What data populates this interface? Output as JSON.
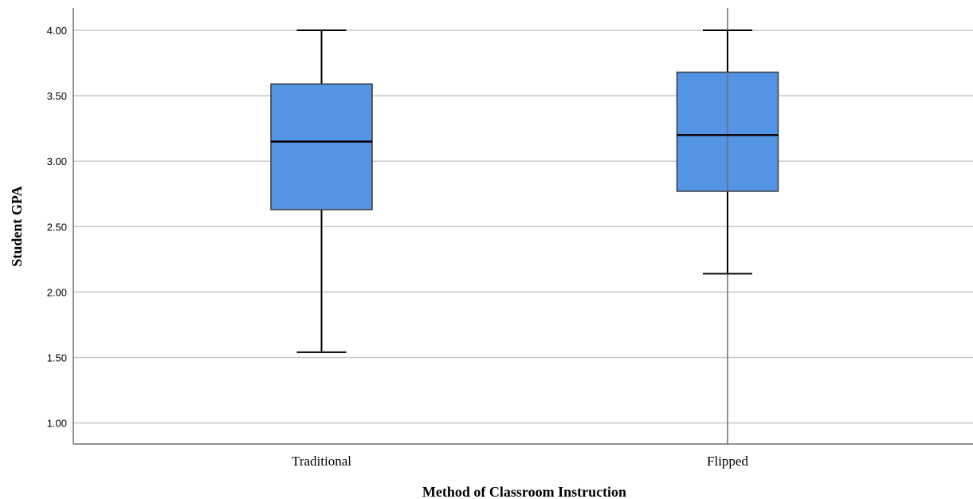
{
  "chart_data": {
    "type": "boxplot",
    "xlabel": "Method of Classroom Instruction",
    "ylabel": "Student GPA",
    "ylim": [
      0.85,
      4.17
    ],
    "yticks": [
      1.0,
      1.5,
      2.0,
      2.5,
      3.0,
      3.5,
      4.0
    ],
    "ytick_labels": [
      "1.00",
      "1.50",
      "2.00",
      "2.50",
      "3.00",
      "3.50",
      "4.00"
    ],
    "grid": true,
    "categories": [
      "Traditional",
      "Flipped"
    ],
    "boxes": [
      {
        "category": "Traditional",
        "min": 1.54,
        "q1": 2.63,
        "median": 3.15,
        "q3": 3.59,
        "max": 4.0
      },
      {
        "category": "Flipped",
        "min": 2.14,
        "q1": 2.77,
        "median": 3.2,
        "q3": 3.68,
        "max": 4.0
      }
    ],
    "colors": {
      "box_fill": "#5494e4",
      "grid": "#c8c8c8",
      "axis": "#6e6e6e"
    }
  }
}
